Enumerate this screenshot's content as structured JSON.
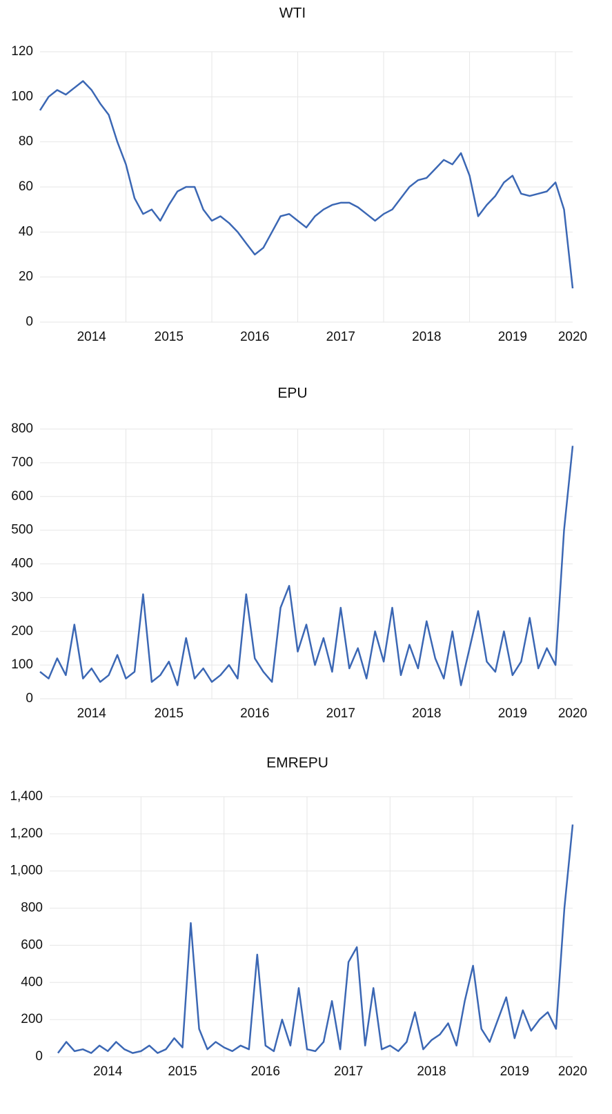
{
  "chart_data": [
    {
      "type": "line",
      "title": "WTI",
      "color": "#3b67b4",
      "x": [
        2014.0,
        2014.1,
        2014.2,
        2014.3,
        2014.4,
        2014.5,
        2014.6,
        2014.7,
        2014.8,
        2014.9,
        2015.0,
        2015.1,
        2015.2,
        2015.3,
        2015.4,
        2015.5,
        2015.6,
        2015.7,
        2015.8,
        2015.9,
        2016.0,
        2016.1,
        2016.2,
        2016.3,
        2016.4,
        2016.5,
        2016.6,
        2016.7,
        2016.8,
        2016.9,
        2017.0,
        2017.1,
        2017.2,
        2017.3,
        2017.4,
        2017.5,
        2017.6,
        2017.7,
        2017.8,
        2017.9,
        2018.0,
        2018.1,
        2018.2,
        2018.3,
        2018.4,
        2018.5,
        2018.6,
        2018.7,
        2018.8,
        2018.9,
        2019.0,
        2019.1,
        2019.2,
        2019.3,
        2019.4,
        2019.5,
        2019.6,
        2019.7,
        2019.8,
        2019.9,
        2020.0,
        2020.1,
        2020.2
      ],
      "values": [
        94,
        100,
        103,
        101,
        104,
        107,
        103,
        97,
        92,
        80,
        70,
        55,
        48,
        50,
        45,
        52,
        58,
        60,
        60,
        50,
        45,
        47,
        44,
        40,
        35,
        30,
        33,
        40,
        47,
        48,
        45,
        42,
        47,
        50,
        52,
        53,
        53,
        51,
        48,
        45,
        48,
        50,
        55,
        60,
        63,
        64,
        68,
        72,
        70,
        75,
        65,
        47,
        52,
        56,
        62,
        65,
        57,
        56,
        57,
        58,
        62,
        50,
        15
      ],
      "xlim": [
        2014.0,
        2020.2
      ],
      "ylim": [
        0,
        120
      ],
      "yticks": [
        0,
        20,
        40,
        60,
        80,
        100,
        120
      ],
      "xticks": [
        {
          "value": 2014.6,
          "label": "2014"
        },
        {
          "value": 2015.5,
          "label": "2015"
        },
        {
          "value": 2016.5,
          "label": "2016"
        },
        {
          "value": 2017.5,
          "label": "2017"
        },
        {
          "value": 2018.5,
          "label": "2018"
        },
        {
          "value": 2019.5,
          "label": "2019"
        },
        {
          "value": 2020.2,
          "label": "2020"
        }
      ],
      "xgrid": [
        2015,
        2016,
        2017,
        2018,
        2019,
        2020
      ],
      "grid": true
    },
    {
      "type": "line",
      "title": "EPU",
      "color": "#3b67b4",
      "x": [
        2014.0,
        2014.1,
        2014.2,
        2014.3,
        2014.4,
        2014.5,
        2014.6,
        2014.7,
        2014.8,
        2014.9,
        2015.0,
        2015.1,
        2015.2,
        2015.3,
        2015.4,
        2015.5,
        2015.6,
        2015.7,
        2015.8,
        2015.9,
        2016.0,
        2016.1,
        2016.2,
        2016.3,
        2016.4,
        2016.5,
        2016.6,
        2016.7,
        2016.8,
        2016.9,
        2017.0,
        2017.1,
        2017.2,
        2017.3,
        2017.4,
        2017.5,
        2017.6,
        2017.7,
        2017.8,
        2017.9,
        2018.0,
        2018.1,
        2018.2,
        2018.3,
        2018.4,
        2018.5,
        2018.6,
        2018.7,
        2018.8,
        2018.9,
        2019.0,
        2019.1,
        2019.2,
        2019.3,
        2019.4,
        2019.5,
        2019.6,
        2019.7,
        2019.8,
        2019.9,
        2020.0,
        2020.1,
        2020.2
      ],
      "values": [
        80,
        60,
        120,
        70,
        220,
        60,
        90,
        50,
        70,
        130,
        60,
        80,
        310,
        50,
        70,
        110,
        40,
        180,
        60,
        90,
        50,
        70,
        100,
        60,
        310,
        120,
        80,
        50,
        270,
        335,
        140,
        220,
        100,
        180,
        80,
        270,
        90,
        150,
        60,
        200,
        110,
        270,
        70,
        160,
        90,
        230,
        120,
        60,
        200,
        40,
        150,
        260,
        110,
        80,
        200,
        70,
        110,
        240,
        90,
        150,
        100,
        500,
        750
      ],
      "xlim": [
        2014.0,
        2020.2
      ],
      "ylim": [
        0,
        800
      ],
      "yticks": [
        0,
        100,
        200,
        300,
        400,
        500,
        600,
        700,
        800
      ],
      "xticks": [
        {
          "value": 2014.6,
          "label": "2014"
        },
        {
          "value": 2015.5,
          "label": "2015"
        },
        {
          "value": 2016.5,
          "label": "2016"
        },
        {
          "value": 2017.5,
          "label": "2017"
        },
        {
          "value": 2018.5,
          "label": "2018"
        },
        {
          "value": 2019.5,
          "label": "2019"
        },
        {
          "value": 2020.2,
          "label": "2020"
        }
      ],
      "xgrid": [
        2015,
        2016,
        2017,
        2018,
        2019,
        2020
      ],
      "grid": true
    },
    {
      "type": "line",
      "title": "EMREPU",
      "color": "#3b67b4",
      "x": [
        2014.0,
        2014.1,
        2014.2,
        2014.3,
        2014.4,
        2014.5,
        2014.6,
        2014.7,
        2014.8,
        2014.9,
        2015.0,
        2015.1,
        2015.2,
        2015.3,
        2015.4,
        2015.5,
        2015.6,
        2015.7,
        2015.8,
        2015.9,
        2016.0,
        2016.1,
        2016.2,
        2016.3,
        2016.4,
        2016.5,
        2016.6,
        2016.7,
        2016.8,
        2016.9,
        2017.0,
        2017.1,
        2017.2,
        2017.3,
        2017.4,
        2017.5,
        2017.6,
        2017.7,
        2017.8,
        2017.9,
        2018.0,
        2018.1,
        2018.2,
        2018.3,
        2018.4,
        2018.5,
        2018.6,
        2018.7,
        2018.8,
        2018.9,
        2019.0,
        2019.1,
        2019.2,
        2019.3,
        2019.4,
        2019.5,
        2019.6,
        2019.7,
        2019.8,
        2019.9,
        2020.0,
        2020.1,
        2020.2
      ],
      "values": [
        20,
        80,
        30,
        40,
        20,
        60,
        30,
        80,
        40,
        20,
        30,
        60,
        20,
        40,
        100,
        50,
        720,
        150,
        40,
        80,
        50,
        30,
        60,
        40,
        550,
        60,
        30,
        200,
        60,
        370,
        40,
        30,
        80,
        300,
        40,
        510,
        590,
        60,
        370,
        40,
        60,
        30,
        80,
        240,
        40,
        90,
        120,
        180,
        60,
        300,
        490,
        150,
        80,
        200,
        320,
        100,
        250,
        140,
        200,
        240,
        150,
        800,
        1250
      ],
      "xlim": [
        2013.9,
        2020.2
      ],
      "ylim": [
        0,
        1400
      ],
      "yticks": [
        0,
        200,
        400,
        600,
        800,
        {
          "value": 1000,
          "label": "1,000"
        },
        {
          "value": 1200,
          "label": "1,200"
        },
        {
          "value": 1400,
          "label": "1,400"
        }
      ],
      "xticks": [
        {
          "value": 2014.6,
          "label": "2014"
        },
        {
          "value": 2015.5,
          "label": "2015"
        },
        {
          "value": 2016.5,
          "label": "2016"
        },
        {
          "value": 2017.5,
          "label": "2017"
        },
        {
          "value": 2018.5,
          "label": "2018"
        },
        {
          "value": 2019.5,
          "label": "2019"
        },
        {
          "value": 2020.2,
          "label": "2020"
        }
      ],
      "xgrid": [
        2015,
        2016,
        2017,
        2018,
        2019,
        2020
      ],
      "grid": true
    }
  ]
}
